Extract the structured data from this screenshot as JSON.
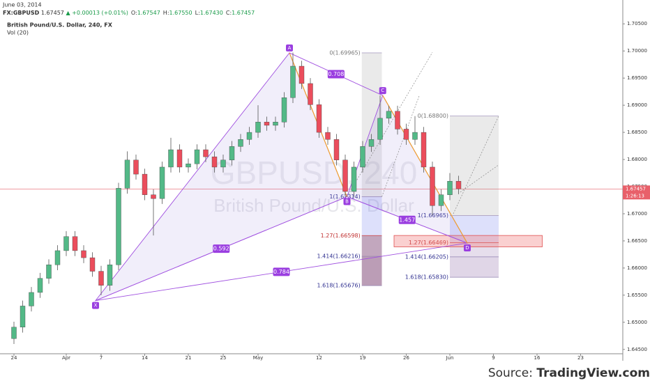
{
  "chart_data": {
    "type": "candlestick",
    "date": "June 03, 2014",
    "header": {
      "symbol": "FX:GBPUSD",
      "last": "1.67457",
      "change": "▲ +0.00013 (+0.01%)",
      "ohlc": [
        {
          "label": "O:",
          "value": "1.67547"
        },
        {
          "label": "H:",
          "value": "1.67550"
        },
        {
          "label": "L:",
          "value": "1.67430"
        },
        {
          "label": "C:",
          "value": "1.67457"
        }
      ]
    },
    "title": "British Pound/U.S. Dollar, 240, FX",
    "indicator": "Vol (20)",
    "watermark": "GBPUSD, 240",
    "watermark_sub": "British Pound/U.S. Dollar",
    "source_prefix": "Source: ",
    "source": "TradingView.com",
    "up_color": "#53b987",
    "down_color": "#eb4d5c",
    "last_price": {
      "value": 1.67457,
      "label": "1.67457",
      "timer": "1:26:13",
      "color": "#e8606a"
    },
    "x": [
      0,
      1,
      2,
      3,
      4,
      5,
      6,
      7,
      8,
      9,
      10,
      11,
      12,
      13,
      14,
      15,
      16,
      17,
      18,
      19,
      20,
      21,
      22,
      23,
      24,
      25,
      26,
      27,
      28,
      29,
      30,
      31,
      32,
      33,
      34,
      35,
      36,
      37,
      38,
      39,
      40,
      41,
      42,
      43,
      44,
      45,
      46,
      47,
      48,
      49,
      50,
      51
    ],
    "open": [
      1.647,
      1.6491,
      1.653,
      1.6555,
      1.6581,
      1.6606,
      1.6632,
      1.6658,
      1.6632,
      1.6619,
      1.6594,
      1.6568,
      1.6606,
      1.6747,
      1.6799,
      1.6773,
      1.6735,
      1.6728,
      1.6786,
      1.6818,
      1.6786,
      1.6792,
      1.6818,
      1.6805,
      1.6786,
      1.6799,
      1.6824,
      1.6837,
      1.685,
      1.6869,
      1.6863,
      1.6869,
      1.6914,
      1.6972,
      1.694,
      1.6901,
      1.685,
      1.6837,
      1.6799,
      1.6741,
      1.6786,
      1.6824,
      1.6837,
      1.6876,
      1.6889,
      1.6856,
      1.6837,
      1.685,
      1.6786,
      1.6715,
      1.6735,
      1.676
    ],
    "high": [
      1.6501,
      1.654,
      1.6565,
      1.6591,
      1.6616,
      1.6642,
      1.6668,
      1.6668,
      1.6642,
      1.6629,
      1.6604,
      1.6616,
      1.6757,
      1.6815,
      1.6809,
      1.6783,
      1.6745,
      1.6796,
      1.684,
      1.6828,
      1.6802,
      1.6828,
      1.6828,
      1.6815,
      1.6809,
      1.6834,
      1.6847,
      1.686,
      1.69,
      1.6879,
      1.6879,
      1.6924,
      1.6997,
      1.6982,
      1.695,
      1.6911,
      1.686,
      1.6847,
      1.6809,
      1.6796,
      1.6834,
      1.6847,
      1.6918,
      1.6899,
      1.6899,
      1.6866,
      1.688,
      1.686,
      1.6796,
      1.6745,
      1.6775,
      1.677
    ],
    "low": [
      1.646,
      1.6481,
      1.652,
      1.6545,
      1.6571,
      1.6596,
      1.6622,
      1.6622,
      1.6609,
      1.6584,
      1.655,
      1.6558,
      1.6596,
      1.6737,
      1.6763,
      1.6725,
      1.666,
      1.6718,
      1.6776,
      1.6776,
      1.6776,
      1.6782,
      1.6795,
      1.6776,
      1.6776,
      1.6789,
      1.6814,
      1.6827,
      1.684,
      1.6853,
      1.6853,
      1.6859,
      1.6904,
      1.693,
      1.6891,
      1.684,
      1.6827,
      1.6789,
      1.6731,
      1.6731,
      1.6776,
      1.6814,
      1.6827,
      1.6866,
      1.6846,
      1.6827,
      1.6827,
      1.6776,
      1.6697,
      1.6705,
      1.6725,
      1.6736
    ],
    "close": [
      1.6491,
      1.653,
      1.6555,
      1.6581,
      1.6606,
      1.6632,
      1.6658,
      1.6632,
      1.6619,
      1.6594,
      1.6568,
      1.6606,
      1.6747,
      1.6799,
      1.6773,
      1.6735,
      1.6728,
      1.6786,
      1.6818,
      1.6786,
      1.6792,
      1.6818,
      1.6805,
      1.6786,
      1.6799,
      1.6824,
      1.6837,
      1.685,
      1.6869,
      1.6863,
      1.6869,
      1.6914,
      1.6972,
      1.694,
      1.6901,
      1.685,
      1.6837,
      1.6799,
      1.6741,
      1.6786,
      1.6824,
      1.6837,
      1.6876,
      1.6889,
      1.6856,
      1.6837,
      1.685,
      1.6786,
      1.6715,
      1.6735,
      1.676,
      1.6746
    ],
    "xlim": [
      -1.6,
      69.84
    ],
    "ylim": [
      1.6442,
      1.7058
    ],
    "xticks": [
      {
        "value": 0,
        "label": "24"
      },
      {
        "value": 6,
        "label": "Apr"
      },
      {
        "value": 10,
        "label": "7"
      },
      {
        "value": 15,
        "label": "14"
      },
      {
        "value": 20,
        "label": "21"
      },
      {
        "value": 24,
        "label": "25"
      },
      {
        "value": 28,
        "label": "May"
      },
      {
        "value": 35,
        "label": "12"
      },
      {
        "value": 40,
        "label": "19"
      },
      {
        "value": 45,
        "label": "26"
      },
      {
        "value": 50,
        "label": "Jun"
      },
      {
        "value": 55,
        "label": "9"
      },
      {
        "value": 60,
        "label": "16"
      },
      {
        "value": 65,
        "label": "23"
      }
    ],
    "yticks": [
      {
        "value": 1.645,
        "label": "1.64500"
      },
      {
        "value": 1.65,
        "label": "1.65000"
      },
      {
        "value": 1.655,
        "label": "1.65500"
      },
      {
        "value": 1.66,
        "label": "1.66000"
      },
      {
        "value": 1.665,
        "label": "1.66500"
      },
      {
        "value": 1.67,
        "label": "1.67000"
      },
      {
        "value": 1.675,
        "label": "1.67500"
      },
      {
        "value": 1.68,
        "label": "1.68000"
      },
      {
        "value": 1.685,
        "label": "1.68500"
      },
      {
        "value": 1.69,
        "label": "1.69000"
      },
      {
        "value": 1.695,
        "label": "1.69500"
      },
      {
        "value": 1.7,
        "label": "1.70000"
      },
      {
        "value": 1.705,
        "label": "1.70500"
      }
    ],
    "pattern": {
      "points": [
        {
          "label": "X",
          "x": 9.36,
          "y": 1.654
        },
        {
          "label": "A",
          "x": 31.6,
          "y": 1.69965
        },
        {
          "label": "B",
          "x": 38.2,
          "y": 1.67314
        },
        {
          "label": "C",
          "x": 42.3,
          "y": 1.6918
        },
        {
          "label": "D",
          "x": 52,
          "y": 1.6646
        }
      ],
      "ratios": [
        {
          "from": 1,
          "to": 3,
          "value": 0.708
        },
        {
          "from": 0,
          "to": 2,
          "value": 0.592
        },
        {
          "from": 2,
          "to": 4,
          "value": 1.457
        },
        {
          "from": 0,
          "to": 4,
          "value": 0.784
        }
      ]
    },
    "fib_boxes": [
      {
        "xrange": [
          39.9,
          42.2
        ],
        "levels": [
          {
            "value": 1.69965,
            "label": "0(1.69965)"
          },
          {
            "value": 1.67314,
            "label": "1(1.67314)"
          },
          {
            "value": 1.66598,
            "label": "1.27(1.66598)"
          },
          {
            "value": 1.66216,
            "label": "1.414(1.66216)"
          },
          {
            "value": 1.65676,
            "label": "1.618(1.65676)"
          }
        ]
      },
      {
        "xrange": [
          50,
          55.6
        ],
        "levels": [
          {
            "value": 1.688,
            "label": "0(1.68800)"
          },
          {
            "value": 1.66965,
            "label": "1(1.66965)"
          },
          {
            "value": 1.66469,
            "label": "1.27(1.66469)"
          },
          {
            "value": 1.66205,
            "label": "1.414(1.66205)"
          },
          {
            "value": 1.6583,
            "label": "1.618(1.65830)"
          }
        ]
      }
    ],
    "zone": {
      "xrange": [
        43.6,
        60.6
      ],
      "yrange": [
        1.6639,
        1.666
      ]
    },
    "trend_lines": [
      {
        "x": [
          38.2,
          48
        ],
        "y": [
          1.67314,
          1.69974
        ]
      },
      {
        "x": [
          42.2,
          46.5
        ],
        "y": [
          1.67314,
          1.6918
        ]
      },
      {
        "x": [
          50.4,
          55.6
        ],
        "y": [
          1.67,
          1.688
        ]
      },
      {
        "x": [
          51.2,
          55.6
        ],
        "y": [
          1.674,
          1.679
        ]
      }
    ]
  }
}
